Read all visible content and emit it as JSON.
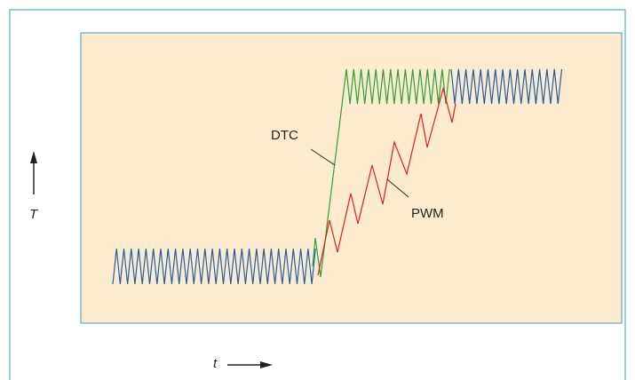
{
  "figure": {
    "y_axis_label": "T",
    "x_axis_label": "t",
    "dtc_label": "DTC",
    "pwm_label": "PWM"
  },
  "colors": {
    "frame_border": "#3a9cc4",
    "panel_fill": "#fdebd0",
    "panel_border": "#3a9cc4",
    "steady_trace": "#1f5fa8",
    "dtc_trace": "#2aa23a",
    "pwm_trace": "#e01f1f",
    "text": "#222222"
  }
}
